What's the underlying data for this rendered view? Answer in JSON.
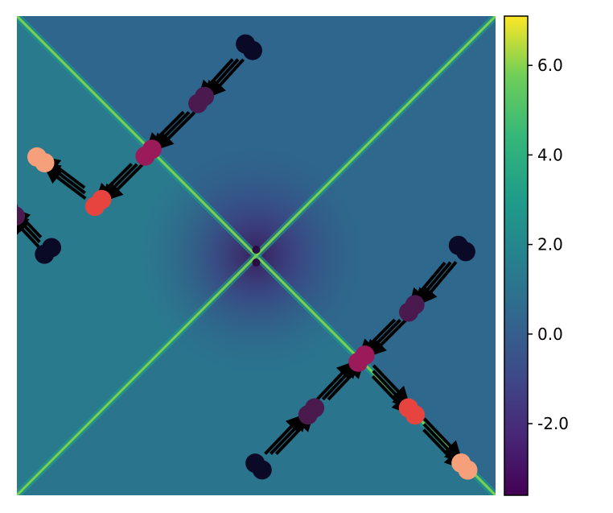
{
  "chart_data": {
    "type": "heatmap",
    "title": "",
    "xlabel": "",
    "ylabel": "",
    "xlim": [
      -1,
      1
    ],
    "ylim": [
      -1,
      1
    ],
    "field": {
      "description_of_pattern": "log-scaled magnitude field; bright ridges along both diagonals, dark minimum at center",
      "colormap": "viridis",
      "vmin": -3.6,
      "vmax": 7.1
    },
    "colorbar": {
      "ticks": [
        6.0,
        4.0,
        2.0,
        0.0,
        -2.0
      ],
      "tick_labels": [
        "6.0",
        "4.0",
        "2.0",
        "0.0",
        "-2.0"
      ],
      "range": [
        -3.6,
        7.1
      ]
    },
    "colors": {
      "step0": "#0b0a26",
      "step1": "#4a1a4f",
      "step2": "#9b1a5a",
      "step3": "#e8443f",
      "step4": "#f5a07a",
      "arrow": "#000000"
    },
    "trajectories": [
      {
        "points": [
          {
            "x": -0.03,
            "y": 0.87,
            "step": 0
          },
          {
            "x": -0.23,
            "y": 0.65,
            "step": 1
          },
          {
            "x": -0.45,
            "y": 0.43,
            "step": 2
          },
          {
            "x": -0.66,
            "y": 0.22,
            "step": 3
          },
          {
            "x": -0.9,
            "y": 0.4,
            "step": 4
          }
        ]
      },
      {
        "points": [
          {
            "x": -0.87,
            "y": 0.02,
            "step": 0
          },
          {
            "x": -1.02,
            "y": 0.18,
            "step": 1
          }
        ]
      },
      {
        "points": [
          {
            "x": 0.86,
            "y": 0.03,
            "step": 0
          },
          {
            "x": 0.65,
            "y": -0.22,
            "step": 1
          },
          {
            "x": 0.44,
            "y": -0.43,
            "step": 2
          },
          {
            "x": 0.65,
            "y": -0.65,
            "step": 3
          },
          {
            "x": 0.87,
            "y": -0.88,
            "step": 4
          }
        ]
      },
      {
        "points": [
          {
            "x": 0.01,
            "y": -0.88,
            "step": 0
          },
          {
            "x": 0.23,
            "y": -0.65,
            "step": 1
          },
          {
            "x": 0.44,
            "y": -0.43,
            "step": 2
          }
        ]
      }
    ]
  }
}
